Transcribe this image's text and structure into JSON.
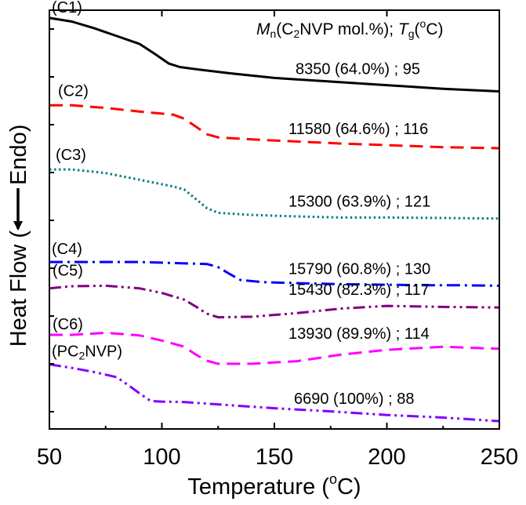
{
  "chart_data": {
    "type": "line",
    "title": "",
    "xlabel": "Temperature (°C)",
    "xlabel_parts": {
      "pre": "Temperature (",
      "sup": "o",
      "post": "C)"
    },
    "ylabel": "Heat Flow (  — Endo)",
    "ylabel_parts": {
      "left": "Heat Flow (",
      "right": "Endo)"
    },
    "ylabel_arrow": "down-arrow",
    "xlim": [
      50,
      250
    ],
    "xticks": [
      50,
      100,
      150,
      200,
      250
    ],
    "xtick_labels": [
      "50",
      "100",
      "150",
      "200",
      "250"
    ],
    "y_ticks_labeled": false,
    "grid": false,
    "legend": "none",
    "annotation_header": "Mn(C2NVP mol.%); Tg(°C)",
    "annotation_header_parts": {
      "m": "M",
      "n": "n",
      "mid": "(C",
      "two": "2",
      "rest": "NVP mol.%); ",
      "t": "T",
      "g": "g",
      "open": "(",
      "deg": "o",
      "close": "C)"
    },
    "series": [
      {
        "name": "(C1)",
        "note": "8350 (64.0%) ; 95",
        "color": "#000000",
        "dash": "solid",
        "x": [
          50,
          60,
          70,
          80,
          90,
          97,
          103,
          108,
          115,
          130,
          150,
          175,
          200,
          225,
          250
        ],
        "y": [
          34.5,
          33.8,
          32.5,
          31.0,
          29.5,
          27.5,
          25.7,
          25.0,
          24.6,
          23.8,
          22.9,
          22.2,
          21.5,
          20.8,
          20.3
        ]
      },
      {
        "name": "(C2)",
        "note": "11580 (64.6%) ; 116",
        "color": "#ff0000",
        "dash": "dashed",
        "x": [
          50,
          60,
          75,
          90,
          105,
          110,
          115,
          120,
          125,
          140,
          160,
          180,
          200,
          225,
          250
        ],
        "y": [
          17.6,
          17.6,
          17.1,
          16.4,
          15.8,
          15.0,
          13.5,
          12.0,
          11.4,
          11.0,
          10.6,
          10.2,
          9.9,
          9.5,
          9.3
        ]
      },
      {
        "name": "(C3)",
        "note": "15300 (63.9%) ; 121",
        "color": "#008080",
        "dash": "dotted",
        "x": [
          50,
          60,
          75,
          90,
          105,
          110,
          115,
          120,
          125,
          140,
          160,
          180,
          200,
          225,
          250
        ],
        "y": [
          5.2,
          5.2,
          4.5,
          3.2,
          1.9,
          1.3,
          -0.5,
          -2.3,
          -3.2,
          -3.6,
          -3.9,
          -4.1,
          -4.1,
          -4.2,
          -4.3
        ]
      },
      {
        "name": "(C4)",
        "note": "15790 (60.8%) ; 130",
        "color": "#0000ff",
        "dash": "dashdot",
        "x": [
          50,
          70,
          90,
          105,
          120,
          125,
          130,
          135,
          145,
          160,
          180,
          200,
          215,
          230,
          250
        ],
        "y": [
          -12.7,
          -12.7,
          -12.7,
          -12.9,
          -13.1,
          -13.7,
          -15.0,
          -16.2,
          -16.6,
          -16.8,
          -17.0,
          -17.1,
          -17.2,
          -17.2,
          -17.3
        ]
      },
      {
        "name": "(C5)",
        "note": "15430 (82.3%) ; 117",
        "color": "#800080",
        "dash": "dashdotdot",
        "x": [
          50,
          60,
          75,
          90,
          100,
          110,
          115,
          120,
          125,
          140,
          160,
          180,
          200,
          225,
          250
        ],
        "y": [
          -17.8,
          -17.4,
          -17.3,
          -17.8,
          -18.7,
          -20.0,
          -21.3,
          -22.7,
          -23.4,
          -23.3,
          -22.6,
          -21.7,
          -21.2,
          -21.4,
          -21.5
        ]
      },
      {
        "name": "(C6)",
        "note": "13930 (89.9%) ; 114",
        "color": "#ff00ff",
        "dash": "dashed",
        "x": [
          50,
          60,
          75,
          90,
          100,
          110,
          115,
          120,
          125,
          140,
          160,
          180,
          200,
          225,
          250
        ],
        "y": [
          -26.8,
          -26.8,
          -26.4,
          -26.9,
          -27.9,
          -29.1,
          -30.6,
          -31.8,
          -32.4,
          -32.4,
          -31.9,
          -30.6,
          -29.7,
          -29.1,
          -29.5
        ]
      },
      {
        "name": "(PC2NVP)",
        "note": "6690 (100%) ; 88",
        "color": "#8000ff",
        "dash": "dashdotdot",
        "x": [
          50,
          60,
          70,
          80,
          85,
          90,
          95,
          100,
          110,
          130,
          150,
          175,
          200,
          225,
          250
        ],
        "y": [
          -32.5,
          -33.2,
          -34.0,
          -35.0,
          -36.5,
          -38.1,
          -39.6,
          -39.7,
          -39.8,
          -40.4,
          -41.0,
          -41.6,
          -42.3,
          -42.8,
          -43.5
        ]
      }
    ]
  }
}
